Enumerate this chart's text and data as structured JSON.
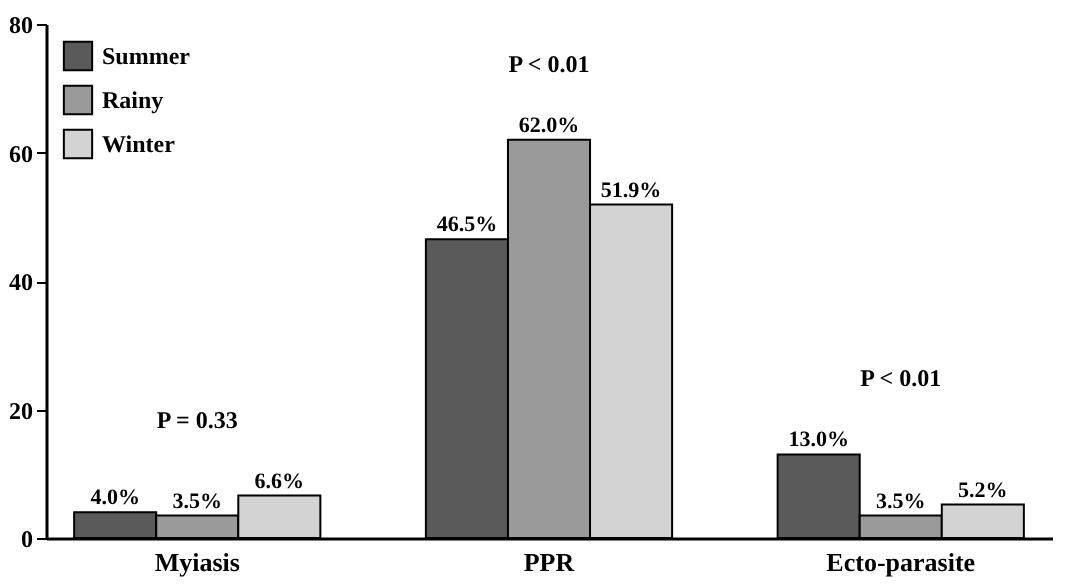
{
  "chart_data": {
    "type": "bar",
    "categories": [
      "Myiasis",
      "PPR",
      "Ecto-parasite"
    ],
    "series": [
      {
        "name": "Summer",
        "color": "#5a5a5a",
        "values": [
          4.0,
          46.5,
          13.0
        ],
        "value_labels": [
          "4.0%",
          "46.5%",
          "13.0%"
        ]
      },
      {
        "name": "Rainy",
        "color": "#9a9a9a",
        "values": [
          3.5,
          62.0,
          3.5
        ],
        "value_labels": [
          "3.5%",
          "62.0%",
          "3.5%"
        ]
      },
      {
        "name": "Winter",
        "color": "#d3d3d3",
        "values": [
          6.6,
          51.9,
          5.2
        ],
        "value_labels": [
          "6.6%",
          "51.9%",
          "5.2%"
        ]
      }
    ],
    "ylim": [
      0,
      80
    ],
    "yticks": [
      0,
      20,
      40,
      60,
      80
    ],
    "grid": false,
    "legend": "top left",
    "annotations": [
      "P = 0.33",
      "P < 0.01",
      "P < 0.01"
    ]
  }
}
